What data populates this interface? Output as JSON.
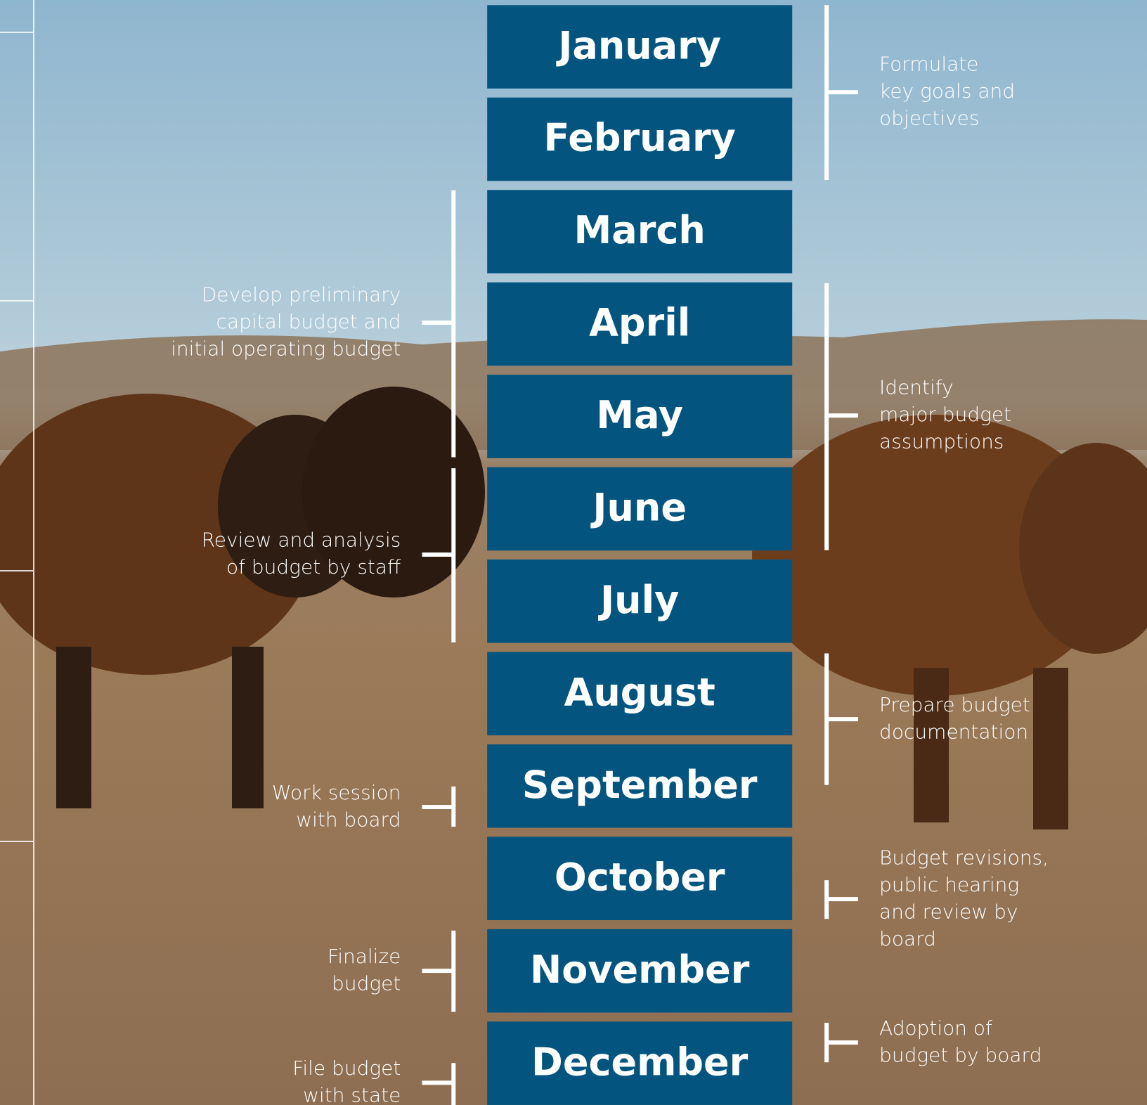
{
  "months": [
    "January",
    "February",
    "March",
    "April",
    "May",
    "June",
    "July",
    "August",
    "September",
    "October",
    "November",
    "December"
  ],
  "left_notes": [
    {
      "lines": [
        "Develop preliminary",
        "capital budget and",
        "initial operating budget"
      ]
    },
    {
      "lines": [
        "Review and analysis",
        "of budget by staff"
      ]
    },
    {
      "lines": [
        "Work session",
        "with board"
      ]
    },
    {
      "lines": [
        "Finalize",
        "budget"
      ]
    },
    {
      "lines": [
        "File budget",
        "with state"
      ]
    }
  ],
  "right_notes": [
    {
      "lines": [
        "Formulate",
        "key goals and",
        "objectives"
      ]
    },
    {
      "lines": [
        "Identify",
        "major budget",
        "assumptions"
      ]
    },
    {
      "lines": [
        "Prepare budget",
        "documentation"
      ]
    },
    {
      "lines": [
        "Budget revisions,",
        "public hearing",
        "and review by",
        "board"
      ]
    },
    {
      "lines": [
        "Adoption of",
        "budget by board"
      ]
    }
  ]
}
